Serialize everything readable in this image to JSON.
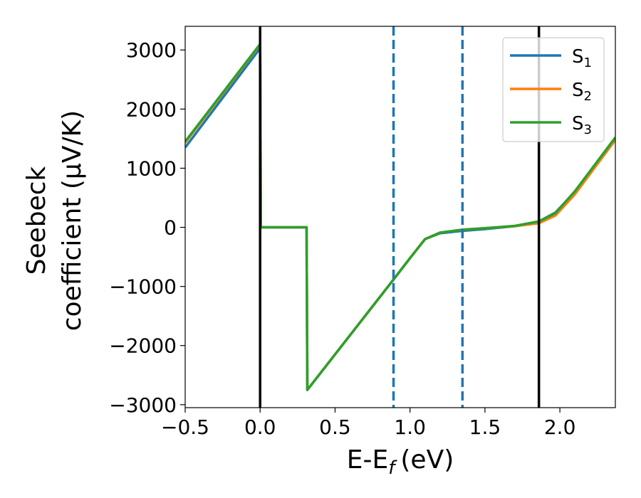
{
  "chart_data": {
    "type": "line",
    "xlabel": "E-E",
    "xlabel_subscript": "f",
    "xlabel_unit": "(eV)",
    "ylabel_line1": "Seebeck",
    "ylabel_line2": "coefficient  (μV/K)",
    "xlim": [
      -0.5,
      2.37
    ],
    "ylim": [
      -3050,
      3400
    ],
    "x_ticks": [
      -0.5,
      0.0,
      0.5,
      1.0,
      1.5,
      2.0
    ],
    "x_tick_labels": [
      "−0.5",
      "0.0",
      "0.5",
      "1.0",
      "1.5",
      "2.0"
    ],
    "y_ticks": [
      -3000,
      -2000,
      -1000,
      0,
      1000,
      2000,
      3000
    ],
    "y_tick_labels": [
      "−3000",
      "−2000",
      "−1000",
      "0",
      "1000",
      "2000",
      "3000"
    ],
    "grid": false,
    "legend_position": "top-right",
    "vertical_lines": [
      {
        "x": 0.0,
        "style": "solid",
        "color": "#000000"
      },
      {
        "x": 0.89,
        "style": "dashed",
        "color": "#1f77b4"
      },
      {
        "x": 1.35,
        "style": "dashed",
        "color": "#1f77b4"
      },
      {
        "x": 1.86,
        "style": "solid",
        "color": "#000000"
      }
    ],
    "series": [
      {
        "name": "S",
        "subscript": "1",
        "color": "#1f77b4",
        "x": [
          -0.5,
          0.0,
          0.005,
          0.31,
          0.315,
          0.9,
          1.0,
          1.1,
          1.2,
          1.35,
          1.5,
          1.7,
          1.86,
          1.97,
          2.1,
          2.37
        ],
        "y": [
          1350,
          3030,
          0,
          0,
          -2750,
          -850,
          -520,
          -200,
          -100,
          -60,
          -30,
          20,
          100,
          250,
          600,
          1500
        ]
      },
      {
        "name": "S",
        "subscript": "2",
        "color": "#ff7f0e",
        "x": [
          -0.5,
          0.0,
          0.005,
          0.31,
          0.315,
          0.9,
          1.0,
          1.1,
          1.2,
          1.35,
          1.5,
          1.7,
          1.86,
          1.97,
          2.1,
          2.37
        ],
        "y": [
          1430,
          3090,
          0,
          0,
          -2750,
          -850,
          -520,
          -200,
          -90,
          -40,
          -15,
          20,
          70,
          200,
          560,
          1480
        ]
      },
      {
        "name": "S",
        "subscript": "3",
        "color": "#2ca02c",
        "x": [
          -0.5,
          0.0,
          0.005,
          0.31,
          0.315,
          0.9,
          1.0,
          1.1,
          1.2,
          1.35,
          1.5,
          1.7,
          1.86,
          1.97,
          2.1,
          2.37
        ],
        "y": [
          1450,
          3100,
          0,
          0,
          -2750,
          -850,
          -520,
          -200,
          -90,
          -40,
          -15,
          25,
          100,
          240,
          610,
          1520
        ]
      }
    ]
  }
}
